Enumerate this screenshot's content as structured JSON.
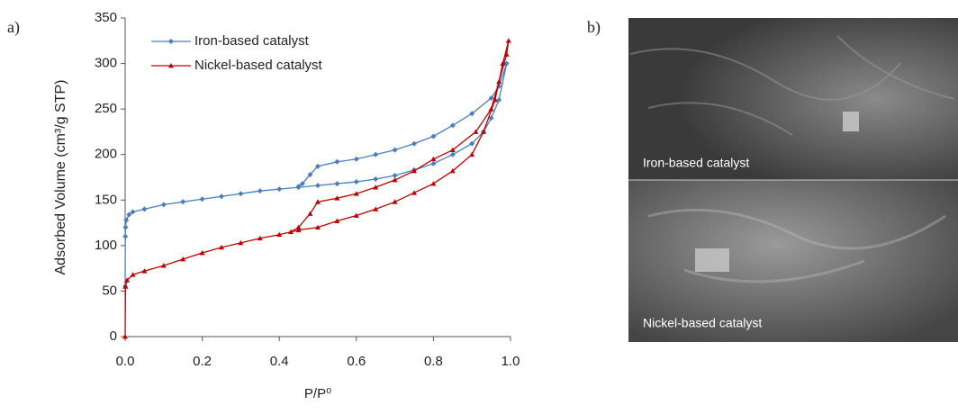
{
  "chart_data": {
    "type": "line",
    "panel_label": "a)",
    "x_label": "P/P⁰",
    "y_label": "Adsorbed Volume  (cm³/g STP)",
    "xlim": [
      0,
      1
    ],
    "ylim": [
      0,
      350
    ],
    "xticks": [
      {
        "value": 0,
        "label": "0.0"
      },
      {
        "value": 0.2,
        "label": "0.2"
      },
      {
        "value": 0.4,
        "label": "0.4"
      },
      {
        "value": 0.6,
        "label": "0.6"
      },
      {
        "value": 0.8,
        "label": "0.8"
      },
      {
        "value": 1,
        "label": "1.0"
      }
    ],
    "yticks": [
      0,
      50,
      100,
      150,
      200,
      250,
      300,
      350
    ],
    "grid": false,
    "legend": "upper left",
    "series": [
      {
        "name": "Iron-based catalyst",
        "color": "#4a7ebf",
        "marker": "diamond",
        "x": [
          0,
          0.0005,
          0.001,
          0.003,
          0.01,
          0.02,
          0.05,
          0.1,
          0.15,
          0.2,
          0.25,
          0.3,
          0.35,
          0.4,
          0.45,
          0.5,
          0.55,
          0.6,
          0.65,
          0.7,
          0.75,
          0.8,
          0.85,
          0.9,
          0.93,
          0.95,
          0.97,
          0.99,
          0.97,
          0.95,
          0.9,
          0.85,
          0.8,
          0.75,
          0.7,
          0.65,
          0.6,
          0.55,
          0.5,
          0.48,
          0.46,
          0.45
        ],
        "values": [
          55,
          110,
          120,
          128,
          134,
          137,
          140,
          145,
          148,
          151,
          154,
          157,
          160,
          162,
          164,
          166,
          168,
          170,
          173,
          177,
          183,
          190,
          200,
          212,
          225,
          240,
          260,
          300,
          275,
          262,
          245,
          232,
          220,
          212,
          205,
          200,
          195,
          192,
          187,
          178,
          168,
          165
        ]
      },
      {
        "name": "Nickel-based catalyst",
        "color": "#c00000",
        "marker": "triangle",
        "x": [
          0,
          0.001,
          0.005,
          0.02,
          0.05,
          0.1,
          0.15,
          0.2,
          0.25,
          0.3,
          0.35,
          0.4,
          0.45,
          0.5,
          0.55,
          0.6,
          0.65,
          0.7,
          0.75,
          0.8,
          0.85,
          0.9,
          0.93,
          0.96,
          0.98,
          0.995,
          0.99,
          0.97,
          0.95,
          0.91,
          0.85,
          0.8,
          0.75,
          0.7,
          0.65,
          0.6,
          0.55,
          0.5,
          0.48,
          0.45,
          0.43
        ],
        "values": [
          0,
          55,
          62,
          68,
          72,
          78,
          85,
          92,
          98,
          103,
          108,
          112,
          117,
          120,
          127,
          133,
          140,
          148,
          158,
          168,
          182,
          200,
          225,
          260,
          300,
          325,
          310,
          280,
          250,
          225,
          205,
          195,
          182,
          172,
          164,
          157,
          152,
          148,
          135,
          120,
          115
        ]
      }
    ]
  },
  "image_panel": {
    "panel_label": "b)",
    "captions": [
      "Iron-based catalyst",
      "Nickel-based catalyst"
    ]
  }
}
